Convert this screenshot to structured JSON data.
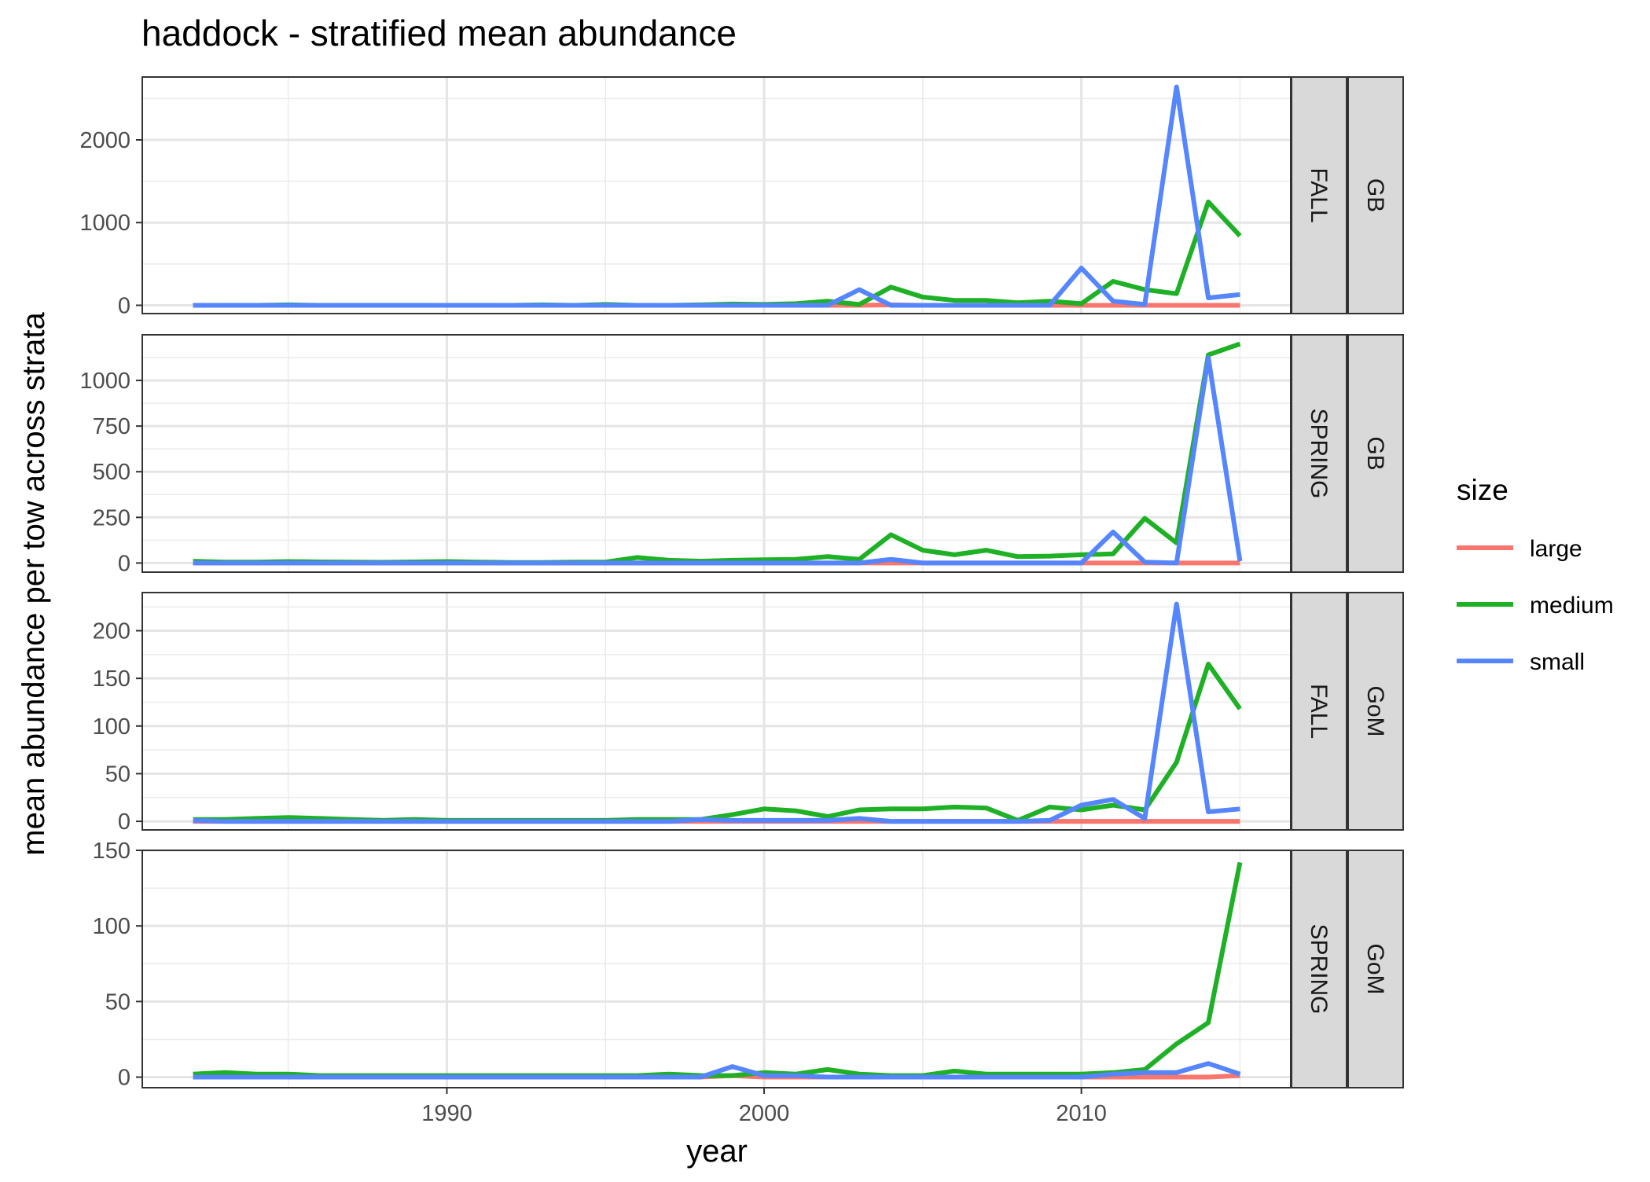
{
  "chart_data": {
    "type": "line",
    "title": "haddock - stratified mean abundance",
    "xlabel": "year",
    "ylabel": "mean abundance per tow across strata",
    "xlim": [
      1980.4,
      2016.6
    ],
    "x_ticks": [
      1990,
      2000,
      2010
    ],
    "x": [
      1982,
      1983,
      1984,
      1985,
      1986,
      1987,
      1988,
      1989,
      1990,
      1991,
      1992,
      1993,
      1994,
      1995,
      1996,
      1997,
      1998,
      1999,
      2000,
      2001,
      2002,
      2003,
      2004,
      2005,
      2006,
      2007,
      2008,
      2009,
      2010,
      2011,
      2012,
      2013,
      2014,
      2015
    ],
    "legend": {
      "title": "size",
      "position": "right",
      "items": [
        {
          "label": "large",
          "color": "#F8766D"
        },
        {
          "label": "medium",
          "color": "#1EB025"
        },
        {
          "label": "small",
          "color": "#5585FF"
        }
      ]
    },
    "grid": true,
    "panels": [
      {
        "season": "FALL",
        "region": "GB",
        "ylim": [
          -100,
          2760
        ],
        "y_ticks": [
          0,
          1000,
          2000
        ],
        "y_tick_labels": [
          "0",
          "1000",
          "2000"
        ],
        "series": [
          {
            "name": "large",
            "values": [
              0,
              0,
              0,
              0,
              0,
              0,
              0,
              0,
              0,
              0,
              0,
              0,
              0,
              0,
              0,
              0,
              0,
              0,
              0,
              0,
              0,
              0,
              5,
              0,
              0,
              0,
              0,
              0,
              0,
              0,
              0,
              0,
              0,
              0
            ]
          },
          {
            "name": "medium",
            "values": [
              0,
              0,
              0,
              5,
              0,
              0,
              0,
              0,
              0,
              0,
              0,
              5,
              0,
              10,
              0,
              0,
              5,
              15,
              10,
              20,
              50,
              10,
              220,
              100,
              60,
              60,
              30,
              50,
              20,
              290,
              190,
              140,
              1250,
              840
            ]
          },
          {
            "name": "small",
            "values": [
              0,
              0,
              0,
              0,
              0,
              0,
              0,
              0,
              0,
              0,
              0,
              0,
              0,
              0,
              0,
              0,
              0,
              0,
              0,
              0,
              0,
              190,
              0,
              0,
              0,
              0,
              0,
              0,
              450,
              50,
              10,
              2640,
              90,
              130
            ]
          }
        ]
      },
      {
        "season": "SPRING",
        "region": "GB",
        "ylim": [
          -50,
          1250
        ],
        "y_ticks": [
          0,
          250,
          500,
          750,
          1000
        ],
        "y_tick_labels": [
          "0",
          "250",
          "500",
          "750",
          "1000"
        ],
        "series": [
          {
            "name": "large",
            "values": [
              0,
              0,
              0,
              0,
              0,
              0,
              0,
              0,
              0,
              0,
              0,
              0,
              0,
              0,
              0,
              0,
              0,
              0,
              0,
              0,
              0,
              0,
              0,
              0,
              0,
              0,
              0,
              0,
              0,
              0,
              0,
              0,
              0,
              0
            ]
          },
          {
            "name": "medium",
            "values": [
              10,
              5,
              5,
              8,
              6,
              5,
              4,
              6,
              8,
              5,
              3,
              3,
              5,
              5,
              30,
              15,
              10,
              15,
              18,
              20,
              35,
              20,
              155,
              70,
              45,
              70,
              35,
              38,
              45,
              50,
              245,
              110,
              1140,
              1200
            ]
          },
          {
            "name": "small",
            "values": [
              0,
              0,
              0,
              0,
              0,
              0,
              0,
              0,
              0,
              0,
              0,
              0,
              0,
              0,
              0,
              0,
              0,
              0,
              0,
              0,
              0,
              0,
              20,
              0,
              0,
              0,
              0,
              0,
              0,
              170,
              5,
              0,
              1125,
              10
            ]
          }
        ]
      },
      {
        "season": "FALL",
        "region": "GoM",
        "ylim": [
          -9,
          240
        ],
        "y_ticks": [
          0,
          50,
          100,
          150,
          200
        ],
        "y_tick_labels": [
          "0",
          "50",
          "100",
          "150",
          "200"
        ],
        "series": [
          {
            "name": "large",
            "values": [
              0,
              0,
              0,
              0,
              0,
              0,
              0,
              0,
              0,
              0,
              0,
              0,
              0,
              0,
              0,
              0,
              0,
              0,
              0,
              0,
              0,
              0,
              0,
              0,
              0,
              0,
              0,
              0,
              0,
              0,
              0,
              0,
              0,
              0
            ]
          },
          {
            "name": "medium",
            "values": [
              2,
              2,
              3,
              4,
              3,
              2,
              1,
              2,
              1,
              1,
              1,
              1,
              1,
              1,
              2,
              2,
              2,
              7,
              13,
              11,
              5,
              12,
              13,
              13,
              15,
              14,
              1,
              15,
              12,
              17,
              12,
              62,
              165,
              118
            ]
          },
          {
            "name": "small",
            "values": [
              1,
              0,
              0,
              0,
              0,
              0,
              0,
              0,
              0,
              0,
              0,
              0,
              0,
              0,
              0,
              0,
              2,
              1,
              1,
              1,
              1,
              3,
              0,
              0,
              0,
              0,
              0,
              1,
              17,
              23,
              3,
              228,
              10,
              13
            ]
          }
        ]
      },
      {
        "season": "SPRING",
        "region": "GoM",
        "ylim": [
          -7,
          150
        ],
        "y_ticks": [
          0,
          50,
          100,
          150
        ],
        "y_tick_labels": [
          "0",
          "50",
          "100",
          "150"
        ],
        "series": [
          {
            "name": "large",
            "values": [
              0,
              0,
              0,
              0,
              0,
              0,
              0,
              0,
              0,
              0,
              0,
              0,
              0,
              0,
              0,
              0,
              0,
              1,
              0,
              0,
              0,
              0,
              0,
              0,
              0,
              0,
              0,
              0,
              0,
              0,
              0,
              0,
              0,
              1
            ]
          },
          {
            "name": "medium",
            "values": [
              2,
              3,
              2,
              2,
              1,
              1,
              1,
              1,
              1,
              1,
              1,
              1,
              1,
              1,
              1,
              2,
              1,
              1,
              3,
              2,
              5,
              2,
              1,
              1,
              4,
              2,
              2,
              2,
              2,
              3,
              5,
              22,
              36,
              142
            ]
          },
          {
            "name": "small",
            "values": [
              0,
              0,
              0,
              0,
              0,
              0,
              0,
              0,
              0,
              0,
              0,
              0,
              0,
              0,
              0,
              0,
              0,
              7,
              1,
              1,
              0,
              0,
              0,
              0,
              0,
              0,
              0,
              0,
              0,
              2,
              3,
              3,
              9,
              2
            ]
          }
        ]
      }
    ]
  }
}
